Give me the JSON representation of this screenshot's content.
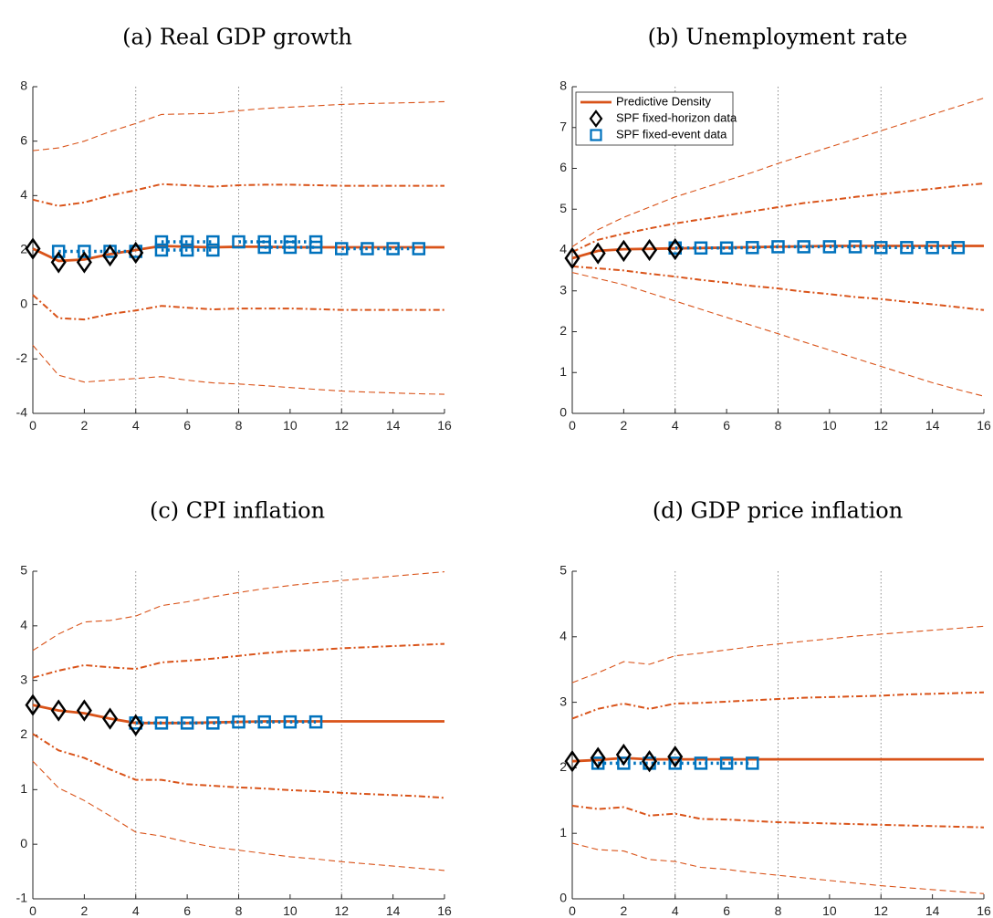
{
  "figure": {
    "series_names": {
      "predictive": "Predictive Density",
      "fixed_horizon": "SPF fixed-horizon data",
      "fixed_event": "SPF fixed-event data"
    },
    "colors": {
      "density": "#d95319",
      "spf_horizon": "#000000",
      "spf_event": "#0072bd",
      "guides": "#7f7f7f",
      "axis": "#262626"
    }
  },
  "chart_data": [
    {
      "id": "a",
      "type": "line",
      "title": "(a) Real GDP growth",
      "xlim": [
        0,
        16
      ],
      "ylim": [
        -4,
        8
      ],
      "xticks": [
        0,
        2,
        4,
        6,
        8,
        10,
        12,
        14,
        16
      ],
      "yticks": [
        -4,
        -2,
        0,
        2,
        4,
        6,
        8
      ],
      "vlines": [
        4,
        8,
        12
      ],
      "legend": false,
      "x": [
        0,
        1,
        2,
        3,
        4,
        5,
        6,
        7,
        8,
        9,
        10,
        11,
        12,
        13,
        14,
        15,
        16
      ],
      "median": [
        2.05,
        1.6,
        1.65,
        1.85,
        2.0,
        2.15,
        2.12,
        2.1,
        2.12,
        2.12,
        2.1,
        2.1,
        2.1,
        2.1,
        2.1,
        2.1,
        2.1
      ],
      "inner_upper": [
        3.85,
        3.62,
        3.75,
        4.0,
        4.2,
        4.42,
        4.38,
        4.33,
        4.38,
        4.4,
        4.4,
        4.38,
        4.36,
        4.36,
        4.36,
        4.36,
        4.36
      ],
      "inner_lower": [
        0.35,
        -0.5,
        -0.55,
        -0.35,
        -0.22,
        -0.05,
        -0.12,
        -0.18,
        -0.15,
        -0.15,
        -0.15,
        -0.17,
        -0.2,
        -0.2,
        -0.2,
        -0.2,
        -0.2
      ],
      "outer_upper": [
        5.65,
        5.75,
        6.0,
        6.35,
        6.65,
        6.98,
        7.0,
        7.02,
        7.12,
        7.2,
        7.25,
        7.3,
        7.35,
        7.38,
        7.4,
        7.42,
        7.45
      ],
      "outer_lower": [
        -1.5,
        -2.6,
        -2.85,
        -2.78,
        -2.72,
        -2.65,
        -2.78,
        -2.88,
        -2.92,
        -2.98,
        -3.05,
        -3.12,
        -3.18,
        -3.22,
        -3.25,
        -3.28,
        -3.3
      ],
      "spf_fixed_horizon": {
        "x": [
          0,
          1,
          2,
          3,
          4
        ],
        "y": [
          2.05,
          1.55,
          1.55,
          1.8,
          1.9
        ]
      },
      "spf_fixed_event": [
        {
          "x": [
            1,
            2,
            3,
            4
          ],
          "y": [
            1.95,
            1.95,
            1.95,
            1.95
          ]
        },
        {
          "x": [
            5,
            6,
            7
          ],
          "y": [
            2.3,
            2.3,
            2.3
          ]
        },
        {
          "x": [
            5,
            6,
            7
          ],
          "y": [
            2.0,
            2.0,
            2.0
          ]
        },
        {
          "x": [
            8,
            9,
            10,
            11
          ],
          "y": [
            2.3,
            2.3,
            2.3,
            2.3
          ]
        },
        {
          "x": [
            9,
            10,
            11
          ],
          "y": [
            2.1,
            2.1,
            2.1
          ]
        },
        {
          "x": [
            12,
            13,
            14,
            15
          ],
          "y": [
            2.05,
            2.05,
            2.05,
            2.05
          ]
        }
      ]
    },
    {
      "id": "b",
      "type": "line",
      "title": "(b) Unemployment rate",
      "xlim": [
        0,
        16
      ],
      "ylim": [
        0,
        8
      ],
      "xticks": [
        0,
        2,
        4,
        6,
        8,
        10,
        12,
        14,
        16
      ],
      "yticks": [
        0,
        1,
        2,
        3,
        4,
        5,
        6,
        7,
        8
      ],
      "vlines": [
        4,
        8,
        12
      ],
      "legend": true,
      "x": [
        0,
        1,
        2,
        3,
        4,
        5,
        6,
        7,
        8,
        9,
        10,
        11,
        12,
        13,
        14,
        15,
        16
      ],
      "median": [
        3.8,
        3.98,
        4.02,
        4.03,
        4.04,
        4.05,
        4.06,
        4.07,
        4.08,
        4.09,
        4.1,
        4.1,
        4.1,
        4.1,
        4.1,
        4.1,
        4.1
      ],
      "inner_upper": [
        3.95,
        4.25,
        4.4,
        4.53,
        4.65,
        4.75,
        4.85,
        4.95,
        5.05,
        5.15,
        5.22,
        5.3,
        5.37,
        5.44,
        5.5,
        5.57,
        5.63
      ],
      "inner_lower": [
        3.6,
        3.55,
        3.5,
        3.42,
        3.35,
        3.27,
        3.2,
        3.12,
        3.06,
        2.98,
        2.92,
        2.85,
        2.8,
        2.73,
        2.67,
        2.6,
        2.53
      ],
      "outer_upper": [
        4.08,
        4.5,
        4.8,
        5.05,
        5.3,
        5.5,
        5.7,
        5.9,
        6.12,
        6.32,
        6.52,
        6.72,
        6.92,
        7.12,
        7.32,
        7.52,
        7.72
      ],
      "outer_lower": [
        3.45,
        3.3,
        3.15,
        2.95,
        2.75,
        2.55,
        2.35,
        2.15,
        1.95,
        1.75,
        1.55,
        1.35,
        1.15,
        0.95,
        0.75,
        0.58,
        0.42
      ],
      "spf_fixed_horizon": {
        "x": [
          0,
          1,
          2,
          3,
          4
        ],
        "y": [
          3.8,
          3.92,
          3.98,
          4.0,
          4.02
        ]
      },
      "spf_fixed_event": [
        {
          "x": [
            4,
            5,
            6,
            7,
            8,
            9,
            10,
            11,
            12,
            13,
            14,
            15
          ],
          "y": [
            4.05,
            4.05,
            4.05,
            4.06,
            4.08,
            4.08,
            4.08,
            4.08,
            4.06,
            4.06,
            4.06,
            4.06
          ]
        }
      ]
    },
    {
      "id": "c",
      "type": "line",
      "title": "(c) CPI inflation",
      "xlim": [
        0,
        16
      ],
      "ylim": [
        -1,
        5
      ],
      "xticks": [
        0,
        2,
        4,
        6,
        8,
        10,
        12,
        14,
        16
      ],
      "yticks": [
        -1,
        0,
        1,
        2,
        3,
        4,
        5
      ],
      "vlines": [
        4,
        8,
        12
      ],
      "legend": false,
      "x": [
        0,
        1,
        2,
        3,
        4,
        5,
        6,
        7,
        8,
        9,
        10,
        11,
        12,
        13,
        14,
        15,
        16
      ],
      "median": [
        2.55,
        2.45,
        2.4,
        2.3,
        2.22,
        2.22,
        2.22,
        2.23,
        2.24,
        2.25,
        2.25,
        2.25,
        2.25,
        2.25,
        2.25,
        2.25,
        2.25
      ],
      "inner_upper": [
        3.05,
        3.18,
        3.28,
        3.24,
        3.21,
        3.33,
        3.36,
        3.4,
        3.45,
        3.5,
        3.54,
        3.56,
        3.59,
        3.61,
        3.63,
        3.65,
        3.67
      ],
      "inner_lower": [
        2.02,
        1.72,
        1.58,
        1.37,
        1.18,
        1.18,
        1.1,
        1.07,
        1.04,
        1.02,
        0.99,
        0.97,
        0.94,
        0.92,
        0.9,
        0.88,
        0.85
      ],
      "outer_upper": [
        3.55,
        3.85,
        4.07,
        4.1,
        4.18,
        4.37,
        4.44,
        4.53,
        4.61,
        4.68,
        4.74,
        4.79,
        4.83,
        4.87,
        4.91,
        4.95,
        4.99
      ],
      "outer_lower": [
        1.52,
        1.03,
        0.8,
        0.52,
        0.22,
        0.15,
        0.04,
        -0.05,
        -0.11,
        -0.17,
        -0.23,
        -0.27,
        -0.32,
        -0.36,
        -0.4,
        -0.44,
        -0.48
      ],
      "spf_fixed_horizon": {
        "x": [
          0,
          1,
          2,
          3,
          4
        ],
        "y": [
          2.55,
          2.45,
          2.45,
          2.3,
          2.18
        ]
      },
      "spf_fixed_event": [
        {
          "x": [
            4,
            5,
            6,
            7,
            8,
            9,
            10,
            11
          ],
          "y": [
            2.22,
            2.22,
            2.22,
            2.22,
            2.24,
            2.24,
            2.24,
            2.24
          ]
        }
      ]
    },
    {
      "id": "d",
      "type": "line",
      "title": "(d) GDP price inflation",
      "xlim": [
        0,
        16
      ],
      "ylim": [
        0,
        5
      ],
      "xticks": [
        0,
        2,
        4,
        6,
        8,
        10,
        12,
        14,
        16
      ],
      "yticks": [
        0,
        1,
        2,
        3,
        4,
        5
      ],
      "vlines": [
        4,
        8,
        12
      ],
      "legend": false,
      "x": [
        0,
        1,
        2,
        3,
        4,
        5,
        6,
        7,
        8,
        9,
        10,
        11,
        12,
        13,
        14,
        15,
        16
      ],
      "median": [
        2.1,
        2.12,
        2.15,
        2.13,
        2.13,
        2.13,
        2.13,
        2.13,
        2.13,
        2.13,
        2.13,
        2.13,
        2.13,
        2.13,
        2.13,
        2.13,
        2.13
      ],
      "inner_upper": [
        2.75,
        2.9,
        2.98,
        2.9,
        2.98,
        2.99,
        3.01,
        3.03,
        3.05,
        3.07,
        3.08,
        3.09,
        3.1,
        3.12,
        3.13,
        3.14,
        3.15
      ],
      "inner_lower": [
        1.42,
        1.37,
        1.4,
        1.27,
        1.3,
        1.22,
        1.21,
        1.19,
        1.17,
        1.16,
        1.15,
        1.14,
        1.13,
        1.12,
        1.11,
        1.1,
        1.09
      ],
      "outer_upper": [
        3.3,
        3.45,
        3.62,
        3.58,
        3.71,
        3.75,
        3.8,
        3.85,
        3.89,
        3.93,
        3.97,
        4.01,
        4.04,
        4.07,
        4.1,
        4.13,
        4.16
      ],
      "outer_lower": [
        0.85,
        0.75,
        0.73,
        0.6,
        0.57,
        0.48,
        0.45,
        0.4,
        0.36,
        0.32,
        0.28,
        0.24,
        0.2,
        0.17,
        0.14,
        0.11,
        0.08
      ],
      "spf_fixed_horizon": {
        "x": [
          0,
          1,
          2,
          3,
          4
        ],
        "y": [
          2.1,
          2.15,
          2.2,
          2.1,
          2.17
        ]
      },
      "spf_fixed_event": [
        {
          "x": [
            1,
            2,
            3,
            4,
            5,
            6,
            7
          ],
          "y": [
            2.07,
            2.07,
            2.07,
            2.07,
            2.07,
            2.07,
            2.07
          ]
        }
      ]
    }
  ]
}
